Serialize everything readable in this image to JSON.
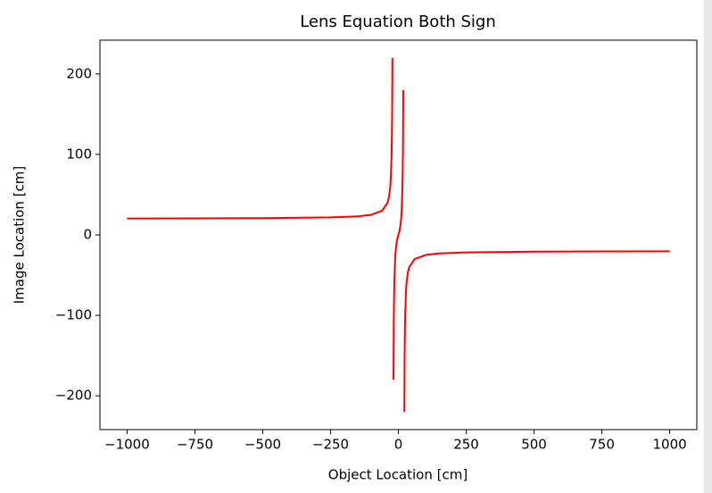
{
  "chart_data": {
    "type": "line",
    "title": "Lens Equation Both Sign",
    "x_label": "Object Location [cm]",
    "y_label": "Image Location [cm]",
    "xlim": [
      -1100,
      1100
    ],
    "ylim": [
      -242,
      242
    ],
    "xticks": [
      {
        "value": -1000,
        "label": "−1000"
      },
      {
        "value": -750,
        "label": "−750"
      },
      {
        "value": -500,
        "label": "−500"
      },
      {
        "value": -250,
        "label": "−250"
      },
      0,
      250,
      500,
      750,
      1000
    ],
    "yticks": [
      {
        "value": -200,
        "label": "−200"
      },
      {
        "value": -100,
        "label": "−100"
      },
      0,
      100,
      200
    ],
    "grid": false,
    "series": [
      {
        "color": "#ff0000",
        "x": [
          -1000,
          -750,
          -500,
          -250,
          -150,
          -100,
          -60,
          -40,
          -35,
          -30,
          -28,
          -25,
          -24,
          -23,
          -22,
          -20,
          -18,
          -17,
          -16,
          -15,
          -12,
          -10,
          -8,
          -5,
          -3,
          0
        ],
        "values": [
          20.41,
          20.55,
          20.83,
          21.74,
          23.08,
          25,
          30,
          40,
          46.67,
          60,
          70,
          100,
          120,
          153.33,
          220,
          null,
          -180,
          -113.33,
          -80,
          -60,
          -30,
          -20,
          -13.33,
          -6.67,
          -3.53,
          0
        ]
      },
      {
        "color": "#ff0000",
        "x": [
          0,
          3,
          5,
          8,
          10,
          12,
          15,
          16,
          17,
          18,
          20,
          22,
          23,
          24,
          25,
          28,
          30,
          35,
          40,
          60,
          100,
          150,
          250,
          500,
          750,
          1000
        ],
        "values": [
          0,
          3.53,
          6.67,
          13.33,
          20,
          30,
          60,
          80,
          113.33,
          180,
          null,
          -220,
          -153.33,
          -120,
          -100,
          -70,
          -60,
          -46.67,
          -40,
          -30,
          -25,
          -23.08,
          -21.74,
          -20.83,
          -20.55,
          -20.41
        ]
      }
    ]
  }
}
